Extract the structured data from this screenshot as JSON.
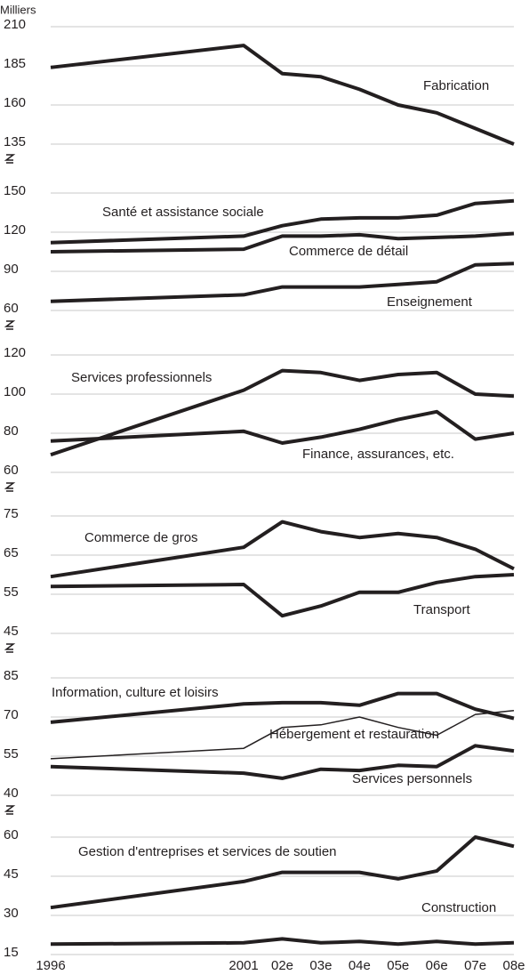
{
  "chart_data": [
    {
      "type": "line",
      "ylabel": "Milliers",
      "ylim": [
        135,
        210
      ],
      "yticks": [
        135,
        160,
        185,
        210
      ],
      "grid": true,
      "x": [
        1996,
        2001,
        2002,
        2003,
        2004,
        2005,
        2006,
        2007,
        2008
      ],
      "series": [
        {
          "name": "Fabrication",
          "color": "#231f20",
          "line_width": 4,
          "values": [
            184,
            198,
            180,
            178,
            170,
            160,
            155,
            145,
            135
          ]
        }
      ]
    },
    {
      "type": "line",
      "ylim": [
        60,
        150
      ],
      "yticks": [
        60,
        90,
        120,
        150
      ],
      "grid": true,
      "x": [
        1996,
        2001,
        2002,
        2003,
        2004,
        2005,
        2006,
        2007,
        2008
      ],
      "series": [
        {
          "name": "Santé et assistance sociale",
          "color": "#231f20",
          "line_width": 4,
          "values": [
            112,
            117,
            125,
            130,
            131,
            131,
            133,
            142,
            144
          ]
        },
        {
          "name": "Commerce de détail",
          "color": "#231f20",
          "line_width": 4,
          "values": [
            105,
            107,
            117,
            117,
            118,
            115,
            116,
            117,
            119
          ]
        },
        {
          "name": "Enseignement",
          "color": "#231f20",
          "line_width": 4,
          "values": [
            67,
            72,
            78,
            78,
            78,
            80,
            82,
            95,
            96
          ]
        }
      ]
    },
    {
      "type": "line",
      "ylim": [
        60,
        120
      ],
      "yticks": [
        60,
        80,
        100,
        120
      ],
      "grid": true,
      "x": [
        1996,
        2001,
        2002,
        2003,
        2004,
        2005,
        2006,
        2007,
        2008
      ],
      "series": [
        {
          "name": "Services professionnels",
          "color": "#231f20",
          "line_width": 4,
          "values": [
            69,
            102,
            112,
            111,
            107,
            110,
            111,
            100,
            99
          ]
        },
        {
          "name": "Finance, assurances, etc.",
          "color": "#231f20",
          "line_width": 4,
          "values": [
            76,
            81,
            75,
            78,
            82,
            87,
            91,
            77,
            80
          ]
        }
      ]
    },
    {
      "type": "line",
      "ylim": [
        45,
        75
      ],
      "yticks": [
        45,
        55,
        65,
        75
      ],
      "grid": true,
      "x": [
        1996,
        2001,
        2002,
        2003,
        2004,
        2005,
        2006,
        2007,
        2008
      ],
      "series": [
        {
          "name": "Commerce de gros",
          "color": "#231f20",
          "line_width": 4,
          "values": [
            59.5,
            67,
            73.5,
            71,
            69.5,
            70.5,
            69.5,
            66.5,
            61.5
          ]
        },
        {
          "name": "Transport",
          "color": "#231f20",
          "line_width": 4,
          "values": [
            57,
            57.5,
            49.5,
            52,
            55.5,
            55.5,
            58,
            59.5,
            60
          ]
        }
      ]
    },
    {
      "type": "line",
      "ylim": [
        40,
        85
      ],
      "yticks": [
        40,
        55,
        70,
        85
      ],
      "grid": true,
      "x": [
        1996,
        2001,
        2002,
        2003,
        2004,
        2005,
        2006,
        2007,
        2008
      ],
      "series": [
        {
          "name": "Information, culture et loisirs",
          "color": "#231f20",
          "line_width": 4,
          "values": [
            68,
            75,
            75.5,
            75.5,
            74.5,
            79,
            79,
            73,
            69.5
          ]
        },
        {
          "name": "Hébergement et restauration",
          "color": "#231f20",
          "line_width": 1.5,
          "values": [
            54,
            58,
            66,
            67,
            70,
            66,
            63,
            71,
            72.5
          ]
        },
        {
          "name": "Services personnels",
          "color": "#231f20",
          "line_width": 4,
          "values": [
            51,
            48.5,
            46.5,
            50,
            49.5,
            51.5,
            51,
            59,
            57
          ]
        }
      ]
    },
    {
      "type": "line",
      "ylim": [
        15,
        60
      ],
      "yticks": [
        15,
        30,
        45,
        60
      ],
      "grid": true,
      "x": [
        1996,
        2001,
        2002,
        2003,
        2004,
        2005,
        2006,
        2007,
        2008
      ],
      "xlim": [
        1996,
        2008
      ],
      "xticks": [
        1996,
        2001,
        {
          "value": 2002,
          "label": "02e"
        },
        {
          "value": 2003,
          "label": "03e"
        },
        {
          "value": 2004,
          "label": "04e"
        },
        {
          "value": 2005,
          "label": "05e"
        },
        {
          "value": 2006,
          "label": "06e"
        },
        {
          "value": 2007,
          "label": "07e"
        },
        {
          "value": 2008,
          "label": "08e"
        }
      ],
      "series": [
        {
          "name": "Gestion d'entreprises et services de soutien",
          "color": "#231f20",
          "line_width": 4,
          "values": [
            33,
            43,
            46.5,
            46.5,
            46.5,
            44,
            47,
            60,
            56.5
          ]
        },
        {
          "name": "Construction",
          "color": "#231f20",
          "line_width": 4,
          "values": [
            19,
            19.5,
            21,
            19.5,
            20,
            19,
            20,
            19,
            19.5
          ]
        }
      ]
    }
  ]
}
